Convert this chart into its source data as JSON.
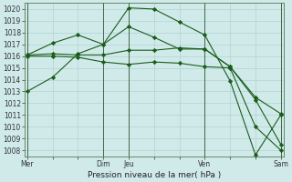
{
  "bg_color": "#d0eaea",
  "grid_color": "#aacccc",
  "line_color": "#1a5c1a",
  "marker_color": "#1a5c1a",
  "xlabel": "Pression niveau de la mer( hPa )",
  "ylim": [
    1007.5,
    1020.5
  ],
  "yticks": [
    1008,
    1009,
    1010,
    1011,
    1012,
    1013,
    1014,
    1015,
    1016,
    1017,
    1018,
    1019,
    1020
  ],
  "xlim": [
    -0.1,
    10.1
  ],
  "xtick_labels": [
    "Mer",
    "",
    "",
    "Dim",
    "Jeu",
    "",
    "",
    "Ven",
    "",
    "",
    "Sam"
  ],
  "xtick_positions": [
    0,
    1,
    2,
    3,
    4,
    5,
    6,
    7,
    8,
    9,
    10
  ],
  "vlines_dark": [
    0,
    3,
    4,
    7,
    10
  ],
  "series": [
    {
      "x": [
        0,
        1,
        2,
        3,
        4,
        5,
        6,
        7,
        8,
        9,
        10
      ],
      "y": [
        1013.0,
        1014.2,
        1016.2,
        1017.0,
        1020.1,
        1020.0,
        1018.9,
        1017.8,
        1013.9,
        1007.6,
        1011.0
      ]
    },
    {
      "x": [
        0,
        1,
        2,
        3,
        4,
        5,
        6,
        7,
        8,
        9,
        10
      ],
      "y": [
        1016.1,
        1017.1,
        1017.8,
        1017.0,
        1018.5,
        1017.6,
        1016.6,
        1016.6,
        1015.1,
        1012.5,
        1011.1
      ]
    },
    {
      "x": [
        0,
        1,
        2,
        3,
        4,
        5,
        6,
        7,
        8,
        9,
        10
      ],
      "y": [
        1016.1,
        1016.2,
        1016.1,
        1016.1,
        1016.5,
        1016.5,
        1016.7,
        1016.6,
        1015.1,
        1012.3,
        1008.5
      ]
    },
    {
      "x": [
        0,
        1,
        2,
        3,
        4,
        5,
        6,
        7,
        8,
        9,
        10
      ],
      "y": [
        1016.0,
        1016.0,
        1015.9,
        1015.5,
        1015.3,
        1015.5,
        1015.4,
        1015.1,
        1015.0,
        1010.0,
        1008.0
      ]
    }
  ],
  "title_fontsize": 6.5,
  "label_fontsize": 6.5,
  "tick_fontsize": 5.5
}
